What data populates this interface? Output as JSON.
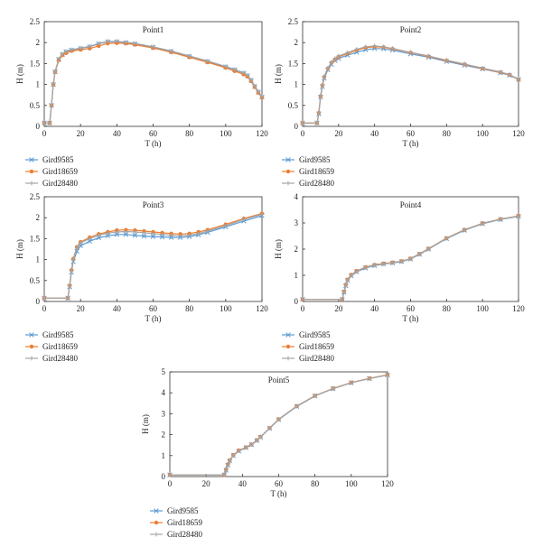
{
  "chart_data": [
    {
      "type": "line",
      "title": "Point1",
      "xlabel": "T (h)",
      "ylabel": "H (m)",
      "xlim": [
        0,
        120
      ],
      "ylim": [
        0,
        2.5
      ],
      "xticks": [
        0,
        20,
        40,
        60,
        80,
        100,
        120
      ],
      "yticks": [
        0,
        0.5,
        1,
        1.5,
        2,
        2.5
      ],
      "ytick_labels": [
        "0",
        "0.5",
        "1",
        "1.5",
        "2",
        "2.5"
      ],
      "x": [
        0,
        3,
        4,
        5,
        6,
        8,
        10,
        12,
        15,
        20,
        25,
        30,
        35,
        40,
        45,
        50,
        60,
        70,
        80,
        90,
        100,
        105,
        110,
        112,
        114,
        116,
        118,
        120
      ],
      "series": [
        {
          "name": "Gird9585",
          "color": "#5b9bd5",
          "marker": "x",
          "values": [
            0.08,
            0.08,
            0.5,
            1.0,
            1.3,
            1.6,
            1.72,
            1.78,
            1.82,
            1.86,
            1.9,
            1.97,
            2.02,
            2.02,
            2.0,
            1.97,
            1.89,
            1.79,
            1.67,
            1.55,
            1.42,
            1.35,
            1.27,
            1.21,
            1.1,
            0.95,
            0.82,
            0.7
          ]
        },
        {
          "name": "Gird18659",
          "color": "#ed7d31",
          "marker": "o",
          "values": [
            0.08,
            0.08,
            0.5,
            1.0,
            1.3,
            1.58,
            1.7,
            1.75,
            1.8,
            1.83,
            1.86,
            1.92,
            1.98,
            1.99,
            1.98,
            1.95,
            1.87,
            1.77,
            1.65,
            1.53,
            1.4,
            1.32,
            1.24,
            1.19,
            1.08,
            0.94,
            0.8,
            0.69
          ]
        },
        {
          "name": "Gird28480",
          "color": "#a5a5a5",
          "marker": "+",
          "values": [
            0.08,
            0.08,
            0.52,
            1.02,
            1.32,
            1.61,
            1.73,
            1.79,
            1.83,
            1.87,
            1.91,
            1.98,
            2.03,
            2.03,
            2.01,
            1.98,
            1.9,
            1.8,
            1.68,
            1.56,
            1.43,
            1.36,
            1.28,
            1.22,
            1.11,
            0.96,
            0.83,
            0.71
          ]
        }
      ]
    },
    {
      "type": "line",
      "title": "Point2",
      "xlabel": "T (h)",
      "ylabel": "H (m)",
      "xlim": [
        0,
        120
      ],
      "ylim": [
        0,
        2.5
      ],
      "xticks": [
        0,
        20,
        40,
        60,
        80,
        100,
        120
      ],
      "yticks": [
        0,
        0.5,
        1,
        1.5,
        2,
        2.5
      ],
      "ytick_labels": [
        "0",
        "0.5",
        "1",
        "1.5",
        "2",
        "2.5"
      ],
      "x": [
        0,
        8,
        9,
        10,
        11,
        12,
        14,
        16,
        18,
        20,
        25,
        30,
        35,
        40,
        45,
        50,
        60,
        70,
        80,
        90,
        100,
        110,
        115,
        120
      ],
      "series": [
        {
          "name": "Gird9585",
          "color": "#5b9bd5",
          "marker": "x",
          "values": [
            0.08,
            0.08,
            0.3,
            0.7,
            0.95,
            1.15,
            1.35,
            1.48,
            1.57,
            1.62,
            1.7,
            1.77,
            1.83,
            1.86,
            1.85,
            1.82,
            1.73,
            1.65,
            1.55,
            1.46,
            1.37,
            1.28,
            1.22,
            1.12
          ]
        },
        {
          "name": "Gird18659",
          "color": "#ed7d31",
          "marker": "o",
          "values": [
            0.08,
            0.08,
            0.32,
            0.72,
            0.98,
            1.18,
            1.38,
            1.52,
            1.6,
            1.66,
            1.74,
            1.82,
            1.88,
            1.9,
            1.89,
            1.85,
            1.76,
            1.67,
            1.57,
            1.48,
            1.38,
            1.29,
            1.23,
            1.12
          ]
        },
        {
          "name": "Gird28480",
          "color": "#a5a5a5",
          "marker": "+",
          "values": [
            0.08,
            0.08,
            0.33,
            0.73,
            0.99,
            1.19,
            1.39,
            1.53,
            1.62,
            1.68,
            1.76,
            1.84,
            1.9,
            1.92,
            1.9,
            1.86,
            1.77,
            1.68,
            1.58,
            1.49,
            1.39,
            1.3,
            1.24,
            1.13
          ]
        }
      ]
    },
    {
      "type": "line",
      "title": "Point3",
      "xlabel": "T (h)",
      "ylabel": "H (m)",
      "xlim": [
        0,
        120
      ],
      "ylim": [
        0,
        2.5
      ],
      "xticks": [
        0,
        20,
        40,
        60,
        80,
        100,
        120
      ],
      "yticks": [
        0,
        0.5,
        1,
        1.5,
        2,
        2.5
      ],
      "ytick_labels": [
        "0",
        "0.5",
        "1",
        "1.5",
        "2",
        "2.5"
      ],
      "x": [
        0,
        13,
        14,
        15,
        16,
        18,
        20,
        25,
        30,
        35,
        40,
        45,
        50,
        55,
        60,
        65,
        70,
        75,
        80,
        85,
        90,
        100,
        110,
        120
      ],
      "series": [
        {
          "name": "Gird9585",
          "color": "#5b9bd5",
          "marker": "x",
          "values": [
            0.08,
            0.08,
            0.35,
            0.7,
            0.95,
            1.2,
            1.33,
            1.44,
            1.52,
            1.57,
            1.6,
            1.6,
            1.58,
            1.56,
            1.55,
            1.54,
            1.53,
            1.53,
            1.55,
            1.59,
            1.65,
            1.78,
            1.92,
            2.05
          ]
        },
        {
          "name": "Gird18659",
          "color": "#ed7d31",
          "marker": "o",
          "values": [
            0.08,
            0.08,
            0.38,
            0.75,
            1.02,
            1.3,
            1.42,
            1.53,
            1.61,
            1.66,
            1.7,
            1.71,
            1.7,
            1.68,
            1.66,
            1.64,
            1.62,
            1.61,
            1.62,
            1.66,
            1.71,
            1.84,
            1.98,
            2.1
          ]
        },
        {
          "name": "Gird28480",
          "color": "#a5a5a5",
          "marker": "+",
          "values": [
            0.08,
            0.08,
            0.37,
            0.73,
            1.0,
            1.28,
            1.4,
            1.5,
            1.58,
            1.63,
            1.66,
            1.67,
            1.66,
            1.64,
            1.62,
            1.6,
            1.58,
            1.57,
            1.58,
            1.62,
            1.68,
            1.81,
            1.96,
            2.08
          ]
        }
      ]
    },
    {
      "type": "line",
      "title": "Point4",
      "xlabel": "T (h)",
      "ylabel": "H (m)",
      "xlim": [
        0,
        120
      ],
      "ylim": [
        0,
        4
      ],
      "xticks": [
        0,
        20,
        40,
        60,
        80,
        100,
        120
      ],
      "yticks": [
        0,
        1,
        2,
        3,
        4
      ],
      "ytick_labels": [
        "0",
        "1",
        "2",
        "3",
        "4"
      ],
      "x": [
        0,
        22,
        23,
        24,
        25,
        27,
        30,
        35,
        40,
        45,
        50,
        55,
        60,
        65,
        70,
        80,
        90,
        100,
        110,
        120
      ],
      "series": [
        {
          "name": "Gird9585",
          "color": "#5b9bd5",
          "marker": "x",
          "values": [
            0.08,
            0.08,
            0.35,
            0.6,
            0.8,
            0.98,
            1.13,
            1.28,
            1.37,
            1.43,
            1.47,
            1.52,
            1.62,
            1.8,
            2.0,
            2.4,
            2.72,
            2.97,
            3.13,
            3.25
          ]
        },
        {
          "name": "Gird18659",
          "color": "#ed7d31",
          "marker": "o",
          "values": [
            0.08,
            0.08,
            0.38,
            0.64,
            0.84,
            1.02,
            1.17,
            1.31,
            1.4,
            1.45,
            1.49,
            1.54,
            1.64,
            1.82,
            2.02,
            2.42,
            2.74,
            2.99,
            3.15,
            3.27
          ]
        },
        {
          "name": "Gird28480",
          "color": "#a5a5a5",
          "marker": "+",
          "values": [
            0.08,
            0.08,
            0.36,
            0.62,
            0.82,
            1.0,
            1.15,
            1.3,
            1.39,
            1.44,
            1.48,
            1.53,
            1.63,
            1.81,
            2.01,
            2.41,
            2.73,
            2.98,
            3.14,
            3.26
          ]
        }
      ]
    },
    {
      "type": "line",
      "title": "Point5",
      "xlabel": "T (h)",
      "ylabel": "H (m)",
      "xlim": [
        0,
        120
      ],
      "ylim": [
        0,
        5
      ],
      "xticks": [
        0,
        20,
        40,
        60,
        80,
        100,
        120
      ],
      "yticks": [
        0,
        1,
        2,
        3,
        4,
        5
      ],
      "ytick_labels": [
        "0",
        "1",
        "2",
        "3",
        "4",
        "5"
      ],
      "x": [
        0,
        30,
        31,
        32,
        33,
        35,
        38,
        42,
        45,
        48,
        50,
        55,
        60,
        70,
        80,
        90,
        100,
        110,
        120
      ],
      "series": [
        {
          "name": "Gird9585",
          "color": "#5b9bd5",
          "marker": "x",
          "values": [
            0.08,
            0.08,
            0.3,
            0.55,
            0.75,
            1.0,
            1.22,
            1.38,
            1.52,
            1.72,
            1.88,
            2.3,
            2.72,
            3.35,
            3.85,
            4.2,
            4.48,
            4.68,
            4.85
          ]
        },
        {
          "name": "Gird18659",
          "color": "#ed7d31",
          "marker": "o",
          "values": [
            0.08,
            0.08,
            0.33,
            0.58,
            0.78,
            1.03,
            1.25,
            1.4,
            1.54,
            1.74,
            1.9,
            2.32,
            2.74,
            3.37,
            3.86,
            4.21,
            4.49,
            4.69,
            4.86
          ]
        },
        {
          "name": "Gird28480",
          "color": "#a5a5a5",
          "marker": "+",
          "values": [
            0.08,
            0.08,
            0.31,
            0.56,
            0.76,
            1.01,
            1.23,
            1.39,
            1.53,
            1.73,
            1.89,
            2.31,
            2.73,
            3.36,
            3.85,
            4.2,
            4.48,
            4.68,
            4.85
          ]
        }
      ]
    }
  ]
}
